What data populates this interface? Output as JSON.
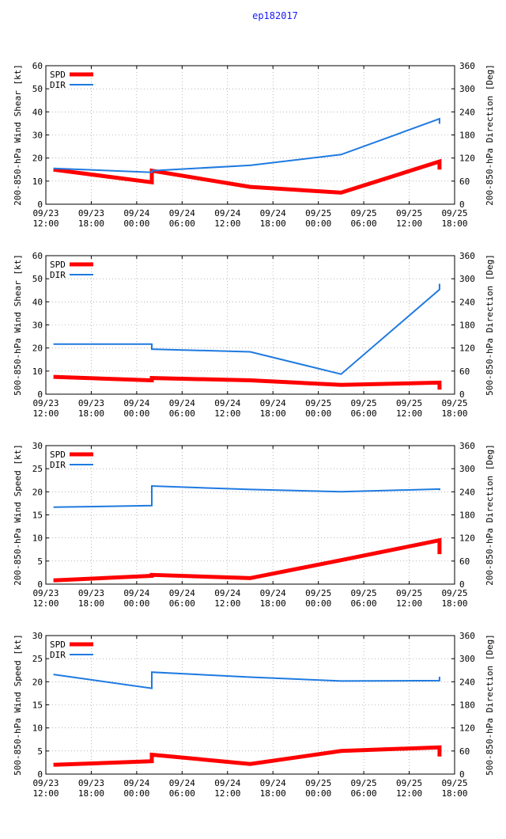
{
  "title": "ep182017",
  "x_tick_labels": [
    [
      "09/23",
      "12:00"
    ],
    [
      "09/23",
      "18:00"
    ],
    [
      "09/24",
      "00:00"
    ],
    [
      "09/24",
      "06:00"
    ],
    [
      "09/24",
      "12:00"
    ],
    [
      "09/24",
      "18:00"
    ],
    [
      "09/25",
      "00:00"
    ],
    [
      "09/25",
      "06:00"
    ],
    [
      "09/25",
      "12:00"
    ],
    [
      "09/25",
      "18:00"
    ]
  ],
  "legend": {
    "spd": "SPD",
    "dir": "DIR"
  },
  "colors": {
    "spd": "#ff0000",
    "dir": "#1f7ae0",
    "title": "#1a1aff"
  },
  "chart_data": [
    {
      "type": "line",
      "ylabel": "200-850-hPa Wind Shear [kt]",
      "y2label": "200-850-hPa Direction [Deg]",
      "xlim_hours": [
        0,
        54
      ],
      "ylim": [
        0,
        60
      ],
      "yticks": [
        0,
        10,
        20,
        30,
        40,
        50,
        60
      ],
      "y2lim": [
        0,
        360
      ],
      "y2ticks": [
        0,
        60,
        120,
        180,
        240,
        300,
        360
      ],
      "series": [
        {
          "name": "SPD",
          "axis": "left",
          "x": [
            1,
            14,
            14,
            27,
            39,
            52,
            52
          ],
          "values": [
            15,
            9.5,
            14.5,
            7.5,
            5,
            18.5,
            15
          ]
        },
        {
          "name": "DIR",
          "axis": "right",
          "x": [
            1,
            14,
            14,
            27,
            39,
            52,
            52
          ],
          "values": [
            93,
            83,
            87,
            101,
            129,
            222,
            209
          ]
        }
      ]
    },
    {
      "type": "line",
      "ylabel": "500-850-hPa Wind Shear [kt]",
      "y2label": "500-850-hPa Direction [Deg]",
      "xlim_hours": [
        0,
        54
      ],
      "ylim": [
        0,
        60
      ],
      "yticks": [
        0,
        10,
        20,
        30,
        40,
        50,
        60
      ],
      "y2lim": [
        0,
        360
      ],
      "y2ticks": [
        0,
        60,
        120,
        180,
        240,
        300,
        360
      ],
      "series": [
        {
          "name": "SPD",
          "axis": "left",
          "x": [
            1,
            14,
            14,
            27,
            39,
            52,
            52
          ],
          "values": [
            7.5,
            6,
            7,
            6,
            4,
            5,
            2
          ]
        },
        {
          "name": "DIR",
          "axis": "right",
          "x": [
            1,
            14,
            14,
            27,
            39,
            52,
            52
          ],
          "values": [
            130,
            130,
            117,
            110,
            52,
            272,
            287
          ]
        }
      ]
    },
    {
      "type": "line",
      "ylabel": "200-850-hPa Wind Speed [kt]",
      "y2label": "200-850-hPa Direction [Deg]",
      "xlim_hours": [
        0,
        54
      ],
      "ylim": [
        0,
        30
      ],
      "yticks": [
        0,
        5,
        10,
        15,
        20,
        25,
        30
      ],
      "y2lim": [
        0,
        360
      ],
      "y2ticks": [
        0,
        60,
        120,
        180,
        240,
        300,
        360
      ],
      "series": [
        {
          "name": "SPD",
          "axis": "left",
          "x": [
            1,
            14,
            14,
            27,
            39,
            52,
            52
          ],
          "values": [
            0.8,
            1.8,
            2.0,
            1.3,
            5.2,
            9.5,
            6.5
          ]
        },
        {
          "name": "DIR",
          "axis": "right",
          "x": [
            1,
            14,
            14,
            27,
            39,
            52,
            52
          ],
          "values": [
            200,
            204,
            255,
            246,
            240,
            247,
            244
          ]
        }
      ]
    },
    {
      "type": "line",
      "ylabel": "500-850-hPa Wind Speed [kt]",
      "y2label": "500-850-hPa Direction [Deg]",
      "xlim_hours": [
        0,
        54
      ],
      "ylim": [
        0,
        30
      ],
      "yticks": [
        0,
        5,
        10,
        15,
        20,
        25,
        30
      ],
      "y2lim": [
        0,
        360
      ],
      "y2ticks": [
        0,
        60,
        120,
        180,
        240,
        300,
        360
      ],
      "series": [
        {
          "name": "SPD",
          "axis": "left",
          "x": [
            1,
            14,
            14,
            27,
            39,
            52,
            52
          ],
          "values": [
            2.0,
            2.8,
            4.2,
            2.2,
            5.0,
            5.8,
            3.8
          ]
        },
        {
          "name": "DIR",
          "axis": "right",
          "x": [
            1,
            14,
            14,
            27,
            39,
            52,
            52
          ],
          "values": [
            259,
            223,
            265,
            252,
            242,
            243,
            253
          ]
        }
      ]
    }
  ]
}
